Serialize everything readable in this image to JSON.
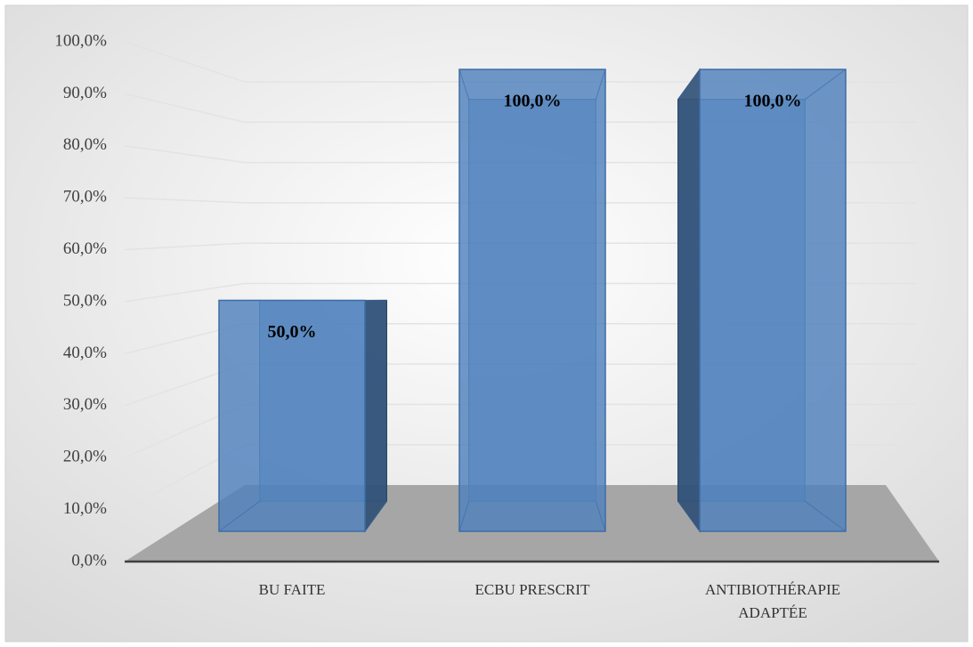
{
  "chart_data": {
    "type": "bar3d",
    "categories": [
      "BU FAITE",
      "ECBU PRESCRIT",
      "ANTIBIOTHÉRAPIE ADAPTÉE"
    ],
    "values": [
      50,
      100,
      100
    ],
    "value_labels": [
      "50,0%",
      "100,0%",
      "100,0%"
    ],
    "color": "#4f81bd",
    "ylim": [
      0,
      100
    ],
    "yticks": [
      {
        "value": 0,
        "label": "0,0%"
      },
      {
        "value": 10,
        "label": "10,0%"
      },
      {
        "value": 20,
        "label": "20,0%"
      },
      {
        "value": 30,
        "label": "30,0%"
      },
      {
        "value": 40,
        "label": "40,0%"
      },
      {
        "value": 50,
        "label": "50,0%"
      },
      {
        "value": 60,
        "label": "60,0%"
      },
      {
        "value": 70,
        "label": "70,0%"
      },
      {
        "value": 80,
        "label": "80,0%"
      },
      {
        "value": 90,
        "label": "90,0%"
      },
      {
        "value": 100,
        "label": "100,0%"
      }
    ],
    "grid": true
  }
}
